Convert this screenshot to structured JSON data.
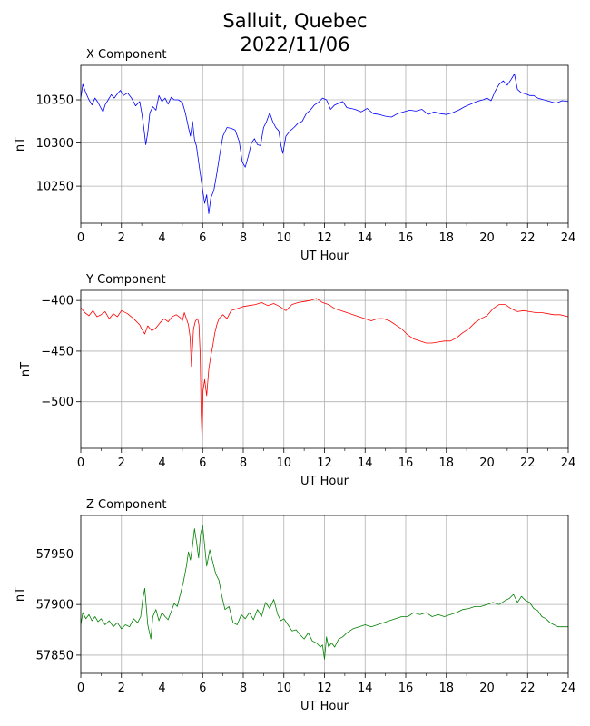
{
  "figure": {
    "title_line1": "Salluit, Quebec",
    "title_line2": "2022/11/06"
  },
  "chart_data": [
    {
      "type": "line",
      "title": "X Component",
      "xlabel": "UT Hour",
      "ylabel": "nT",
      "xlim": [
        0,
        24
      ],
      "ylim": [
        10207,
        10390
      ],
      "xticks": [
        0,
        2,
        4,
        6,
        8,
        10,
        12,
        14,
        16,
        18,
        20,
        22,
        24
      ],
      "yticks": [
        10250,
        10300,
        10350
      ],
      "grid": true,
      "color": "#0000ff",
      "series": [
        {
          "x": [
            0,
            0.1,
            0.25,
            0.4,
            0.55,
            0.7,
            0.85,
            1.0,
            1.1,
            1.2,
            1.35,
            1.5,
            1.65,
            1.8,
            1.95,
            2.1,
            2.3,
            2.5,
            2.7,
            2.9,
            3.0,
            3.1,
            3.2,
            3.3,
            3.4,
            3.55,
            3.7,
            3.85,
            4.0,
            4.15,
            4.3,
            4.45,
            4.6,
            4.8,
            5.0,
            5.15,
            5.3,
            5.4,
            5.5,
            5.6,
            5.7,
            5.8,
            5.9,
            6.0,
            6.1,
            6.2,
            6.3,
            6.4,
            6.55,
            6.7,
            6.85,
            7.0,
            7.2,
            7.4,
            7.6,
            7.8,
            7.95,
            8.1,
            8.25,
            8.4,
            8.55,
            8.7,
            8.85,
            9.0,
            9.15,
            9.3,
            9.45,
            9.6,
            9.75,
            9.85,
            9.95,
            10.1,
            10.3,
            10.5,
            10.7,
            10.9,
            11.1,
            11.3,
            11.5,
            11.7,
            11.9,
            12.1,
            12.3,
            12.5,
            12.7,
            12.9,
            13.1,
            13.3,
            13.5,
            13.8,
            14.1,
            14.4,
            14.7,
            15.0,
            15.3,
            15.6,
            15.9,
            16.2,
            16.5,
            16.8,
            17.1,
            17.4,
            17.7,
            18.0,
            18.3,
            18.6,
            18.9,
            19.2,
            19.5,
            19.8,
            20.0,
            20.2,
            20.4,
            20.6,
            20.8,
            21.0,
            21.2,
            21.35,
            21.5,
            21.7,
            21.9,
            22.1,
            22.3,
            22.5,
            22.8,
            23.1,
            23.4,
            23.7,
            24.0
          ],
          "values": [
            10352,
            10368,
            10358,
            10350,
            10344,
            10352,
            10347,
            10340,
            10336,
            10344,
            10350,
            10356,
            10352,
            10357,
            10361,
            10355,
            10358,
            10352,
            10343,
            10348,
            10335,
            10318,
            10298,
            10312,
            10335,
            10342,
            10338,
            10355,
            10348,
            10352,
            10345,
            10353,
            10350,
            10350,
            10347,
            10335,
            10318,
            10308,
            10325,
            10304,
            10296,
            10278,
            10262,
            10245,
            10230,
            10240,
            10218,
            10236,
            10245,
            10265,
            10288,
            10308,
            10318,
            10317,
            10315,
            10302,
            10278,
            10272,
            10285,
            10300,
            10305,
            10298,
            10297,
            10318,
            10325,
            10335,
            10325,
            10318,
            10314,
            10298,
            10288,
            10308,
            10314,
            10318,
            10323,
            10325,
            10334,
            10338,
            10344,
            10347,
            10352,
            10350,
            10339,
            10344,
            10346,
            10348,
            10341,
            10340,
            10339,
            10336,
            10340,
            10334,
            10333,
            10331,
            10330,
            10334,
            10336,
            10338,
            10337,
            10339,
            10333,
            10336,
            10334,
            10333,
            10335,
            10338,
            10342,
            10345,
            10348,
            10350,
            10352,
            10349,
            10360,
            10368,
            10372,
            10367,
            10374,
            10380,
            10362,
            10358,
            10357,
            10355,
            10355,
            10352,
            10350,
            10348,
            10346,
            10349,
            10348
          ]
        }
      ]
    },
    {
      "type": "line",
      "title": "Y Component",
      "xlabel": "UT Hour",
      "ylabel": "nT",
      "xlim": [
        0,
        24
      ],
      "ylim": [
        -546,
        -390
      ],
      "xticks": [
        0,
        2,
        4,
        6,
        8,
        10,
        12,
        14,
        16,
        18,
        20,
        22,
        24
      ],
      "yticks": [
        -400,
        -450,
        -500
      ],
      "grid": true,
      "color": "#ff0000",
      "series": [
        {
          "x": [
            0,
            0.2,
            0.4,
            0.6,
            0.8,
            1.0,
            1.2,
            1.4,
            1.6,
            1.8,
            2.0,
            2.3,
            2.6,
            2.9,
            3.0,
            3.15,
            3.3,
            3.5,
            3.7,
            3.9,
            4.1,
            4.3,
            4.5,
            4.7,
            4.9,
            5.0,
            5.1,
            5.2,
            5.3,
            5.38,
            5.45,
            5.55,
            5.65,
            5.75,
            5.82,
            5.88,
            5.92,
            5.97,
            6.02,
            6.1,
            6.2,
            6.3,
            6.4,
            6.5,
            6.6,
            6.7,
            6.8,
            7.0,
            7.2,
            7.4,
            7.7,
            8.0,
            8.3,
            8.6,
            8.9,
            9.2,
            9.5,
            9.8,
            10.1,
            10.4,
            10.7,
            11.0,
            11.3,
            11.6,
            11.9,
            12.2,
            12.5,
            12.8,
            13.1,
            13.4,
            13.7,
            14.0,
            14.3,
            14.6,
            14.9,
            15.2,
            15.5,
            15.8,
            16.1,
            16.4,
            16.7,
            17.0,
            17.3,
            17.6,
            17.9,
            18.2,
            18.5,
            18.8,
            19.1,
            19.4,
            19.7,
            20.0,
            20.3,
            20.6,
            20.9,
            21.2,
            21.5,
            21.8,
            22.1,
            22.4,
            22.7,
            23.0,
            23.3,
            23.6,
            24.0
          ],
          "values": [
            -407,
            -412,
            -415,
            -410,
            -416,
            -414,
            -411,
            -418,
            -413,
            -416,
            -410,
            -413,
            -418,
            -424,
            -428,
            -433,
            -425,
            -430,
            -427,
            -422,
            -418,
            -421,
            -416,
            -414,
            -417,
            -420,
            -412,
            -418,
            -424,
            -436,
            -465,
            -428,
            -420,
            -418,
            -424,
            -455,
            -508,
            -537,
            -489,
            -478,
            -494,
            -468,
            -455,
            -445,
            -432,
            -424,
            -418,
            -414,
            -418,
            -410,
            -408,
            -406,
            -405,
            -404,
            -402,
            -405,
            -403,
            -406,
            -410,
            -404,
            -402,
            -401,
            -400,
            -398,
            -402,
            -404,
            -408,
            -410,
            -412,
            -414,
            -416,
            -418,
            -420,
            -418,
            -418,
            -420,
            -424,
            -428,
            -434,
            -438,
            -440,
            -442,
            -442,
            -441,
            -440,
            -440,
            -437,
            -432,
            -428,
            -422,
            -418,
            -415,
            -408,
            -404,
            -404,
            -408,
            -411,
            -410,
            -411,
            -412,
            -412,
            -413,
            -414,
            -414,
            -416
          ]
        }
      ]
    },
    {
      "type": "line",
      "title": "Z Component",
      "xlabel": "UT Hour",
      "ylabel": "nT",
      "xlim": [
        0,
        24
      ],
      "ylim": [
        57832,
        57988
      ],
      "xticks": [
        0,
        2,
        4,
        6,
        8,
        10,
        12,
        14,
        16,
        18,
        20,
        22,
        24
      ],
      "yticks": [
        57850,
        57900,
        57950
      ],
      "grid": true,
      "color": "#008000",
      "series": [
        {
          "x": [
            0,
            0.1,
            0.25,
            0.4,
            0.55,
            0.7,
            0.85,
            1.0,
            1.2,
            1.4,
            1.6,
            1.8,
            2.0,
            2.2,
            2.4,
            2.6,
            2.8,
            2.95,
            3.05,
            3.15,
            3.3,
            3.45,
            3.55,
            3.7,
            3.85,
            4.0,
            4.15,
            4.3,
            4.45,
            4.6,
            4.75,
            4.9,
            5.05,
            5.2,
            5.3,
            5.4,
            5.5,
            5.6,
            5.7,
            5.8,
            5.9,
            6.0,
            6.1,
            6.2,
            6.35,
            6.5,
            6.65,
            6.8,
            6.95,
            7.1,
            7.3,
            7.5,
            7.7,
            7.9,
            8.1,
            8.3,
            8.5,
            8.7,
            8.9,
            9.1,
            9.3,
            9.5,
            9.7,
            9.85,
            10.0,
            10.2,
            10.4,
            10.6,
            10.8,
            11.0,
            11.2,
            11.4,
            11.6,
            11.8,
            11.9,
            12.0,
            12.1,
            12.2,
            12.35,
            12.5,
            12.7,
            12.9,
            13.1,
            13.4,
            13.7,
            14.0,
            14.3,
            14.6,
            14.9,
            15.2,
            15.5,
            15.8,
            16.1,
            16.4,
            16.7,
            17.0,
            17.3,
            17.6,
            17.9,
            18.2,
            18.5,
            18.8,
            19.1,
            19.4,
            19.7,
            20.0,
            20.3,
            20.6,
            20.9,
            21.1,
            21.3,
            21.5,
            21.7,
            21.9,
            22.1,
            22.3,
            22.5,
            22.7,
            22.9,
            23.1,
            23.3,
            23.5,
            23.7,
            24.0
          ],
          "values": [
            57880,
            57892,
            57886,
            57890,
            57884,
            57888,
            57883,
            57886,
            57880,
            57884,
            57878,
            57882,
            57876,
            57880,
            57878,
            57886,
            57882,
            57888,
            57905,
            57916,
            57880,
            57866,
            57888,
            57895,
            57884,
            57892,
            57888,
            57885,
            57893,
            57901,
            57898,
            57910,
            57922,
            57938,
            57952,
            57944,
            57958,
            57975,
            57962,
            57946,
            57970,
            57978,
            57958,
            57938,
            57954,
            57942,
            57930,
            57924,
            57908,
            57895,
            57898,
            57882,
            57880,
            57890,
            57886,
            57892,
            57885,
            57895,
            57888,
            57902,
            57896,
            57905,
            57890,
            57884,
            57886,
            57880,
            57874,
            57875,
            57870,
            57866,
            57872,
            57864,
            57862,
            57858,
            57860,
            57846,
            57868,
            57858,
            57862,
            57858,
            57866,
            57868,
            57872,
            57876,
            57878,
            57880,
            57878,
            57880,
            57882,
            57884,
            57886,
            57888,
            57888,
            57892,
            57890,
            57892,
            57888,
            57890,
            57888,
            57890,
            57892,
            57895,
            57896,
            57898,
            57898,
            57900,
            57902,
            57900,
            57904,
            57906,
            57910,
            57902,
            57908,
            57904,
            57902,
            57896,
            57894,
            57888,
            57886,
            57882,
            57880,
            57878,
            57878,
            57878
          ]
        }
      ]
    }
  ]
}
